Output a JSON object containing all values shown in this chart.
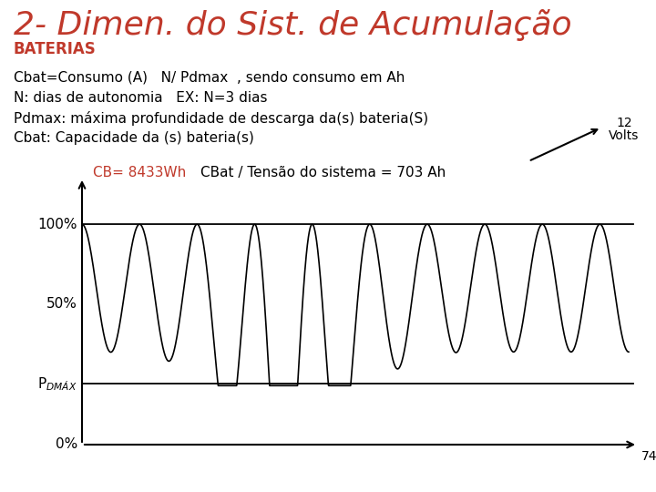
{
  "title": "2- Dimen. do Sist. de Acumulação",
  "subtitle": "BATERIAS",
  "title_color": "#c0392b",
  "subtitle_color": "#c0392b",
  "bg_color": "#ffffff",
  "text_line1": "Cbat=Consumo (A)   N/ Pdmax  , sendo consumo em Ah",
  "text_line2": "N: dias de autonomia   EX: N=3 dias",
  "text_line3": "Pdmax: máxima profundidade de descarga da(s) bateria(S)",
  "text_line4": "Cbat: Capacidade da (s) bateria(s)",
  "cb_label": "CB= 8433Wh",
  "cbat_label": "CBat / Tensão do sistema = 703 Ah",
  "label_100": "100%",
  "label_50": "50%",
  "label_pdmax": "P$_{DMÁX}$",
  "label_0": "0%",
  "label_74": "74",
  "label_12": "12",
  "label_volts": "Volts"
}
